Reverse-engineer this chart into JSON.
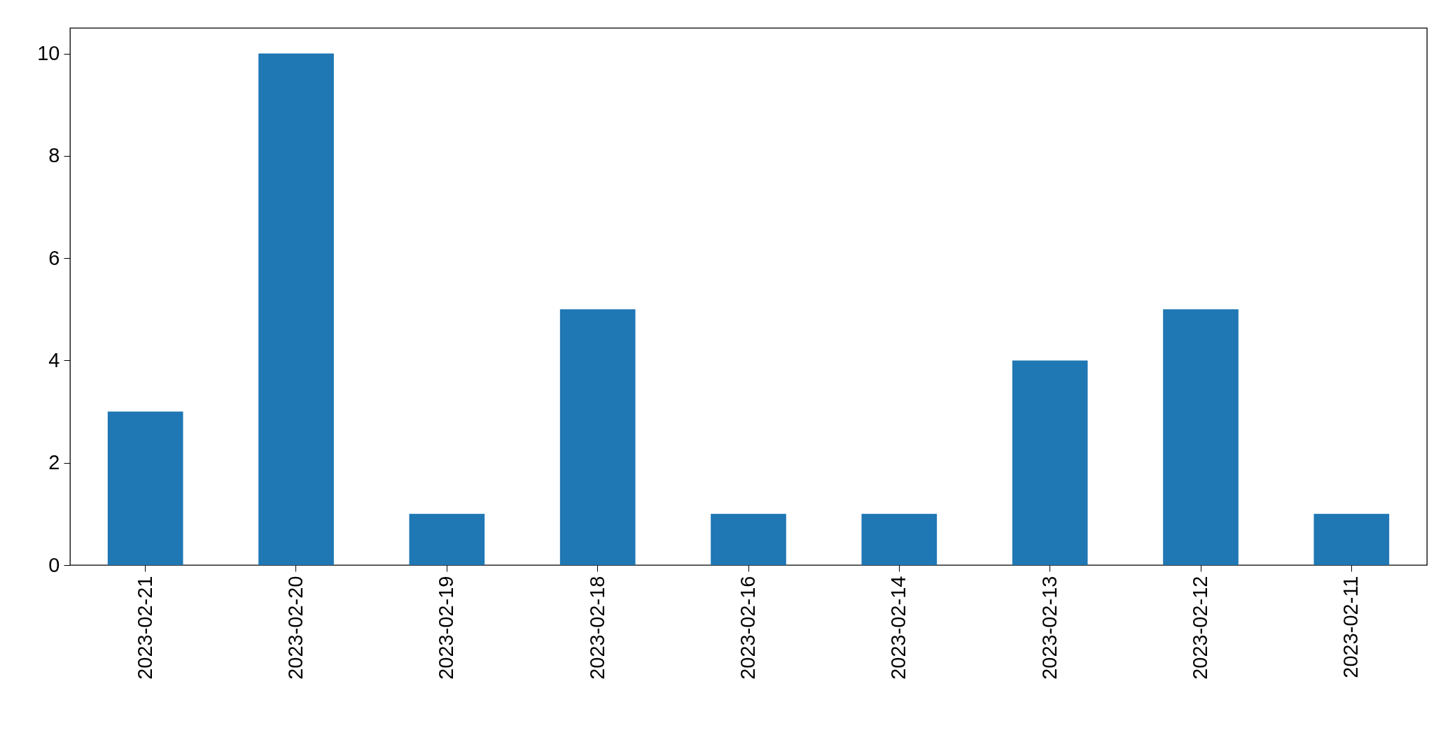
{
  "chart_data": {
    "type": "bar",
    "categories": [
      "2023-02-21",
      "2023-02-20",
      "2023-02-19",
      "2023-02-18",
      "2023-02-16",
      "2023-02-14",
      "2023-02-13",
      "2023-02-12",
      "2023-02-11"
    ],
    "values": [
      3,
      10,
      1,
      5,
      1,
      1,
      4,
      5,
      1
    ],
    "color": "#1f77b4",
    "ylim": [
      0,
      10.5
    ],
    "yticks": [
      0,
      2,
      4,
      6,
      8,
      10
    ],
    "grid": false
  }
}
